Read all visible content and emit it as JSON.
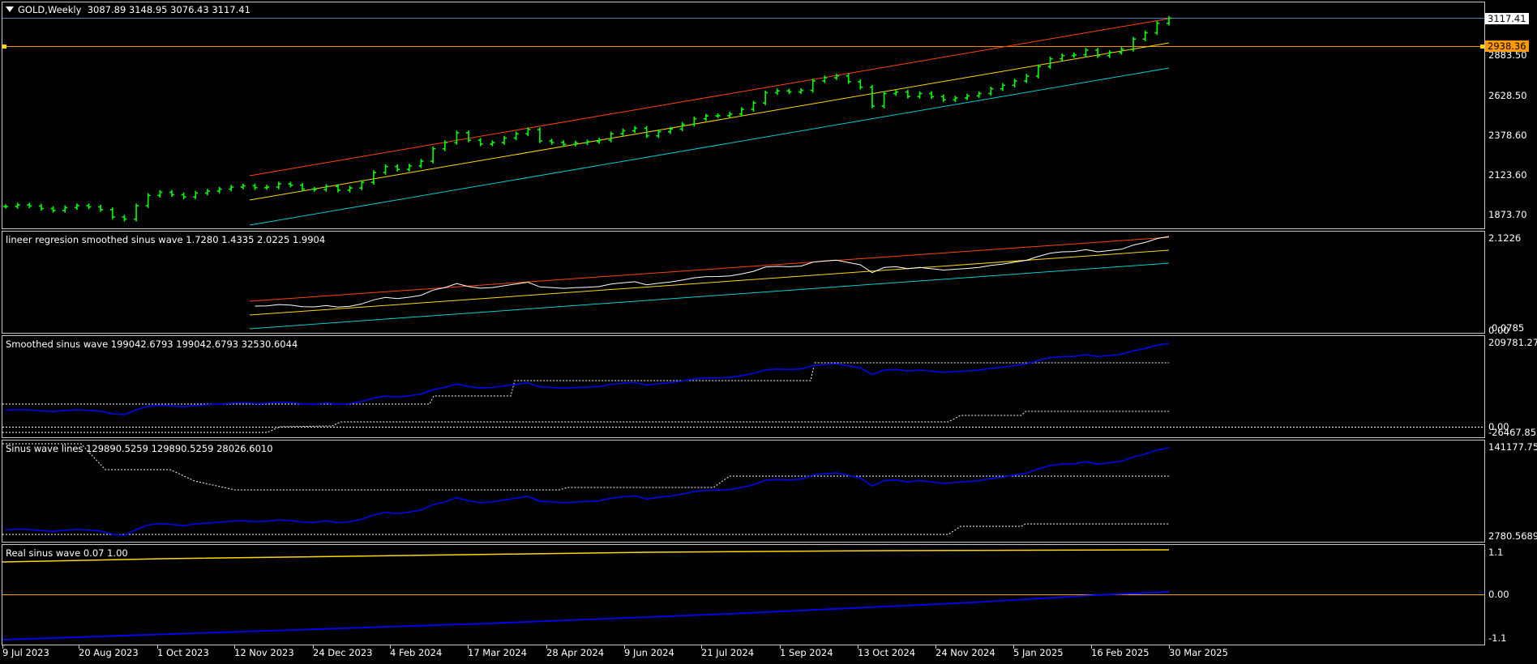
{
  "main": {
    "symbol": "GOLD,Weekly",
    "ohlc": "3087.89 3148.95 3076.43 3117.41",
    "price_labels": [
      "2883.50",
      "2628.50",
      "2378.60",
      "2123.60",
      "1873.70"
    ],
    "current_price": "3117.41",
    "hline_price": "2938.36"
  },
  "panes": [
    {
      "title": "lineer regresion smoothed sinus wave 1.7280 1.4335 2.0225 1.9904",
      "top_label": "2.1226",
      "bottom_label": "0.0785",
      "bottom_label2": "0.00"
    },
    {
      "title": "Smoothed sinus wave 199042.6793 199042.6793 32530.6044",
      "top_label": "209781.27",
      "bottom_label": "-26467.853",
      "bottom_label2": "0.00"
    },
    {
      "title": "Sinus wave lines 129890.5259 129890.5259 28026.6010",
      "top_label": "141177.75",
      "bottom_label": "2780.5689"
    },
    {
      "title": "Real sinus wave 0.07 1.00",
      "top_label": "1.1",
      "mid_label": "0.00",
      "bottom_label": "-1.1"
    }
  ],
  "dates": [
    "9 Jul 2023",
    "20 Aug 2023",
    "1 Oct 2023",
    "12 Nov 2023",
    "24 Dec 2023",
    "4 Feb 2024",
    "17 Mar 2024",
    "28 Apr 2024",
    "9 Jun 2024",
    "21 Jul 2024",
    "1 Sep 2024",
    "13 Oct 2024",
    "24 Nov 2024",
    "5 Jan 2025",
    "16 Feb 2025",
    "30 Mar 2025"
  ],
  "colors": {
    "background": "#000000",
    "bars": "#00ff00",
    "upper_channel": "#ff4500",
    "mid_channel": "#ffd700",
    "lower_channel": "#00ced1",
    "wave": "#0000ff",
    "hline": "#ff8c00",
    "tag": "#ff9900"
  },
  "chart_data": {
    "type": "line",
    "title": "GOLD,Weekly",
    "weekly_close": [
      1925,
      1935,
      1928,
      1912,
      1900,
      1918,
      1930,
      1922,
      1905,
      1858,
      1845,
      1930,
      1995,
      2015,
      2000,
      1985,
      2010,
      2022,
      2035,
      2048,
      2056,
      2044,
      2048,
      2068,
      2060,
      2035,
      2032,
      2052,
      2028,
      2042,
      2078,
      2140,
      2178,
      2160,
      2182,
      2212,
      2290,
      2330,
      2392,
      2345,
      2320,
      2330,
      2358,
      2385,
      2412,
      2340,
      2330,
      2318,
      2328,
      2335,
      2345,
      2385,
      2404,
      2420,
      2372,
      2398,
      2415,
      2445,
      2480,
      2498,
      2500,
      2510,
      2540,
      2580,
      2645,
      2657,
      2650,
      2660,
      2720,
      2740,
      2752,
      2715,
      2680,
      2560,
      2640,
      2650,
      2622,
      2640,
      2620,
      2600,
      2612,
      2625,
      2640,
      2670,
      2692,
      2720,
      2750,
      2810,
      2860,
      2880,
      2885,
      2915,
      2880,
      2900,
      2920,
      2985,
      3025,
      3085,
      3117
    ],
    "ylim": [
      1750,
      3180
    ]
  }
}
